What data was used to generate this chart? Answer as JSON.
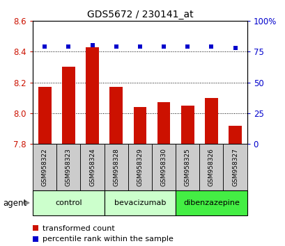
{
  "title": "GDS5672 / 230141_at",
  "samples": [
    "GSM958322",
    "GSM958323",
    "GSM958324",
    "GSM958328",
    "GSM958329",
    "GSM958330",
    "GSM958325",
    "GSM958326",
    "GSM958327"
  ],
  "bar_values": [
    8.17,
    8.3,
    8.43,
    8.17,
    8.04,
    8.07,
    8.05,
    8.1,
    7.92
  ],
  "percentile_values": [
    79,
    79,
    80,
    79,
    79,
    79,
    79,
    79,
    78
  ],
  "bar_color": "#cc1100",
  "percentile_color": "#0000cc",
  "ylim": [
    7.8,
    8.6
  ],
  "y2lim": [
    0,
    100
  ],
  "yticks": [
    7.8,
    8.0,
    8.2,
    8.4,
    8.6
  ],
  "y2ticks": [
    0,
    25,
    50,
    75,
    100
  ],
  "y2ticklabels": [
    "0",
    "25",
    "50",
    "75",
    "100%"
  ],
  "groups": [
    {
      "label": "control",
      "indices": [
        0,
        1,
        2
      ],
      "color": "#ccffcc"
    },
    {
      "label": "bevacizumab",
      "indices": [
        3,
        4,
        5
      ],
      "color": "#ccffcc"
    },
    {
      "label": "dibenzazepine",
      "indices": [
        6,
        7,
        8
      ],
      "color": "#44ee44"
    }
  ],
  "agent_label": "agent",
  "legend_bar_label": "transformed count",
  "legend_pct_label": "percentile rank within the sample",
  "bar_color_legend": "#cc1100",
  "pct_color_legend": "#0000cc",
  "bar_width": 0.55,
  "axis_label_color_left": "#cc1100",
  "axis_label_color_right": "#0000cc",
  "sample_box_color": "#cccccc",
  "title_fontsize": 10,
  "bar_label_fontsize": 7,
  "group_label_fontsize": 8,
  "legend_fontsize": 8
}
